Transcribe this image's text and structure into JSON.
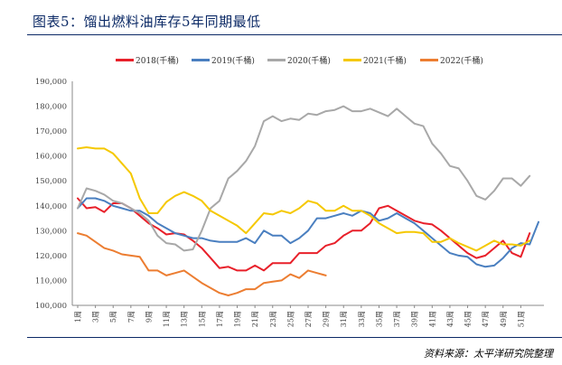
{
  "header": {
    "title": "图表5：馏出燃料油库存5年同期最低"
  },
  "footer": {
    "source": "资料来源：太平洋研究院整理"
  },
  "chart_data": {
    "type": "line",
    "title": "",
    "xlabel": "",
    "ylabel": "",
    "ylim": [
      100000,
      190000
    ],
    "grid": false,
    "legend_position": "top",
    "y_ticks": [
      "100,000",
      "110,000",
      "120,000",
      "130,000",
      "140,000",
      "150,000",
      "160,000",
      "170,000",
      "180,000",
      "190,000"
    ],
    "x_tick_labels": [
      "1周",
      "3周",
      "5周",
      "7周",
      "9周",
      "11周",
      "13周",
      "15周",
      "17周",
      "19周",
      "21周",
      "23周",
      "25周",
      "27周",
      "29周",
      "31周",
      "33周",
      "35周",
      "37周",
      "39周",
      "41周",
      "43周",
      "45周",
      "47周",
      "49周",
      "51周"
    ],
    "series": [
      {
        "name": "2018(千桶)",
        "color": "#e8202a",
        "values": [
          143000,
          139000,
          139500,
          137500,
          141000,
          141000,
          139000,
          136000,
          133000,
          131000,
          128500,
          129000,
          128500,
          126000,
          123000,
          119000,
          115000,
          115500,
          114000,
          114000,
          116000,
          114000,
          117000,
          117000,
          117000,
          121000,
          121000,
          121000,
          124000,
          125000,
          128000,
          130000,
          130000,
          133000,
          139000,
          140000,
          138000,
          136000,
          134000,
          133000,
          132500,
          130000,
          127000,
          124000,
          121000,
          119000,
          120000,
          123000,
          126000,
          121000,
          119500,
          129000
        ]
      },
      {
        "name": "2019(千桶)",
        "color": "#4a7fc0",
        "values": [
          139000,
          143000,
          143000,
          142000,
          140000,
          139000,
          138000,
          138000,
          136000,
          133000,
          131000,
          129000,
          128000,
          127000,
          127000,
          126000,
          125500,
          125500,
          125500,
          127000,
          125000,
          130000,
          128000,
          128000,
          125000,
          127000,
          130000,
          135000,
          135000,
          136000,
          137000,
          136000,
          138000,
          137000,
          134000,
          135000,
          137000,
          135000,
          133000,
          130000,
          127000,
          124000,
          121000,
          120000,
          119500,
          116500,
          115500,
          116000,
          119000,
          123000,
          125000,
          124500,
          133500
        ]
      },
      {
        "name": "2020(千桶)",
        "color": "#a8a8a8",
        "values": [
          139000,
          147000,
          146000,
          144500,
          142000,
          141000,
          139000,
          137000,
          134000,
          128000,
          125000,
          124500,
          122000,
          122500,
          130000,
          139000,
          142000,
          151000,
          154000,
          158000,
          164000,
          174000,
          176000,
          174000,
          175000,
          174500,
          177000,
          176500,
          178000,
          178500,
          180000,
          178000,
          178000,
          179000,
          177500,
          176000,
          179000,
          176000,
          173000,
          172000,
          165000,
          161000,
          156000,
          155000,
          150000,
          144000,
          142500,
          146000,
          151000,
          151000,
          148000,
          152000
        ]
      },
      {
        "name": "2021(千桶)",
        "color": "#f5c800",
        "values": [
          163000,
          163500,
          163000,
          163000,
          161000,
          157000,
          153000,
          143000,
          137000,
          137000,
          141500,
          144000,
          145500,
          144000,
          142000,
          138000,
          136000,
          134000,
          132000,
          129000,
          133000,
          137000,
          136500,
          138000,
          137000,
          139000,
          142000,
          141000,
          138000,
          138000,
          140000,
          138000,
          138000,
          136000,
          133000,
          131000,
          129000,
          129500,
          129500,
          129000,
          125500,
          125500,
          127000,
          125000,
          123500,
          122000,
          124000,
          126000,
          124500,
          124500,
          124000,
          126000
        ]
      },
      {
        "name": "2022(千桶)",
        "color": "#ec7d31",
        "values": [
          129000,
          128000,
          125500,
          123000,
          122000,
          120500,
          120000,
          119500,
          114000,
          114000,
          112000,
          113000,
          114000,
          111500,
          109000,
          107000,
          105000,
          104000,
          105000,
          106500,
          106500,
          109000,
          109500,
          110000,
          112500,
          111000,
          114000,
          113000,
          112000
        ]
      }
    ]
  }
}
